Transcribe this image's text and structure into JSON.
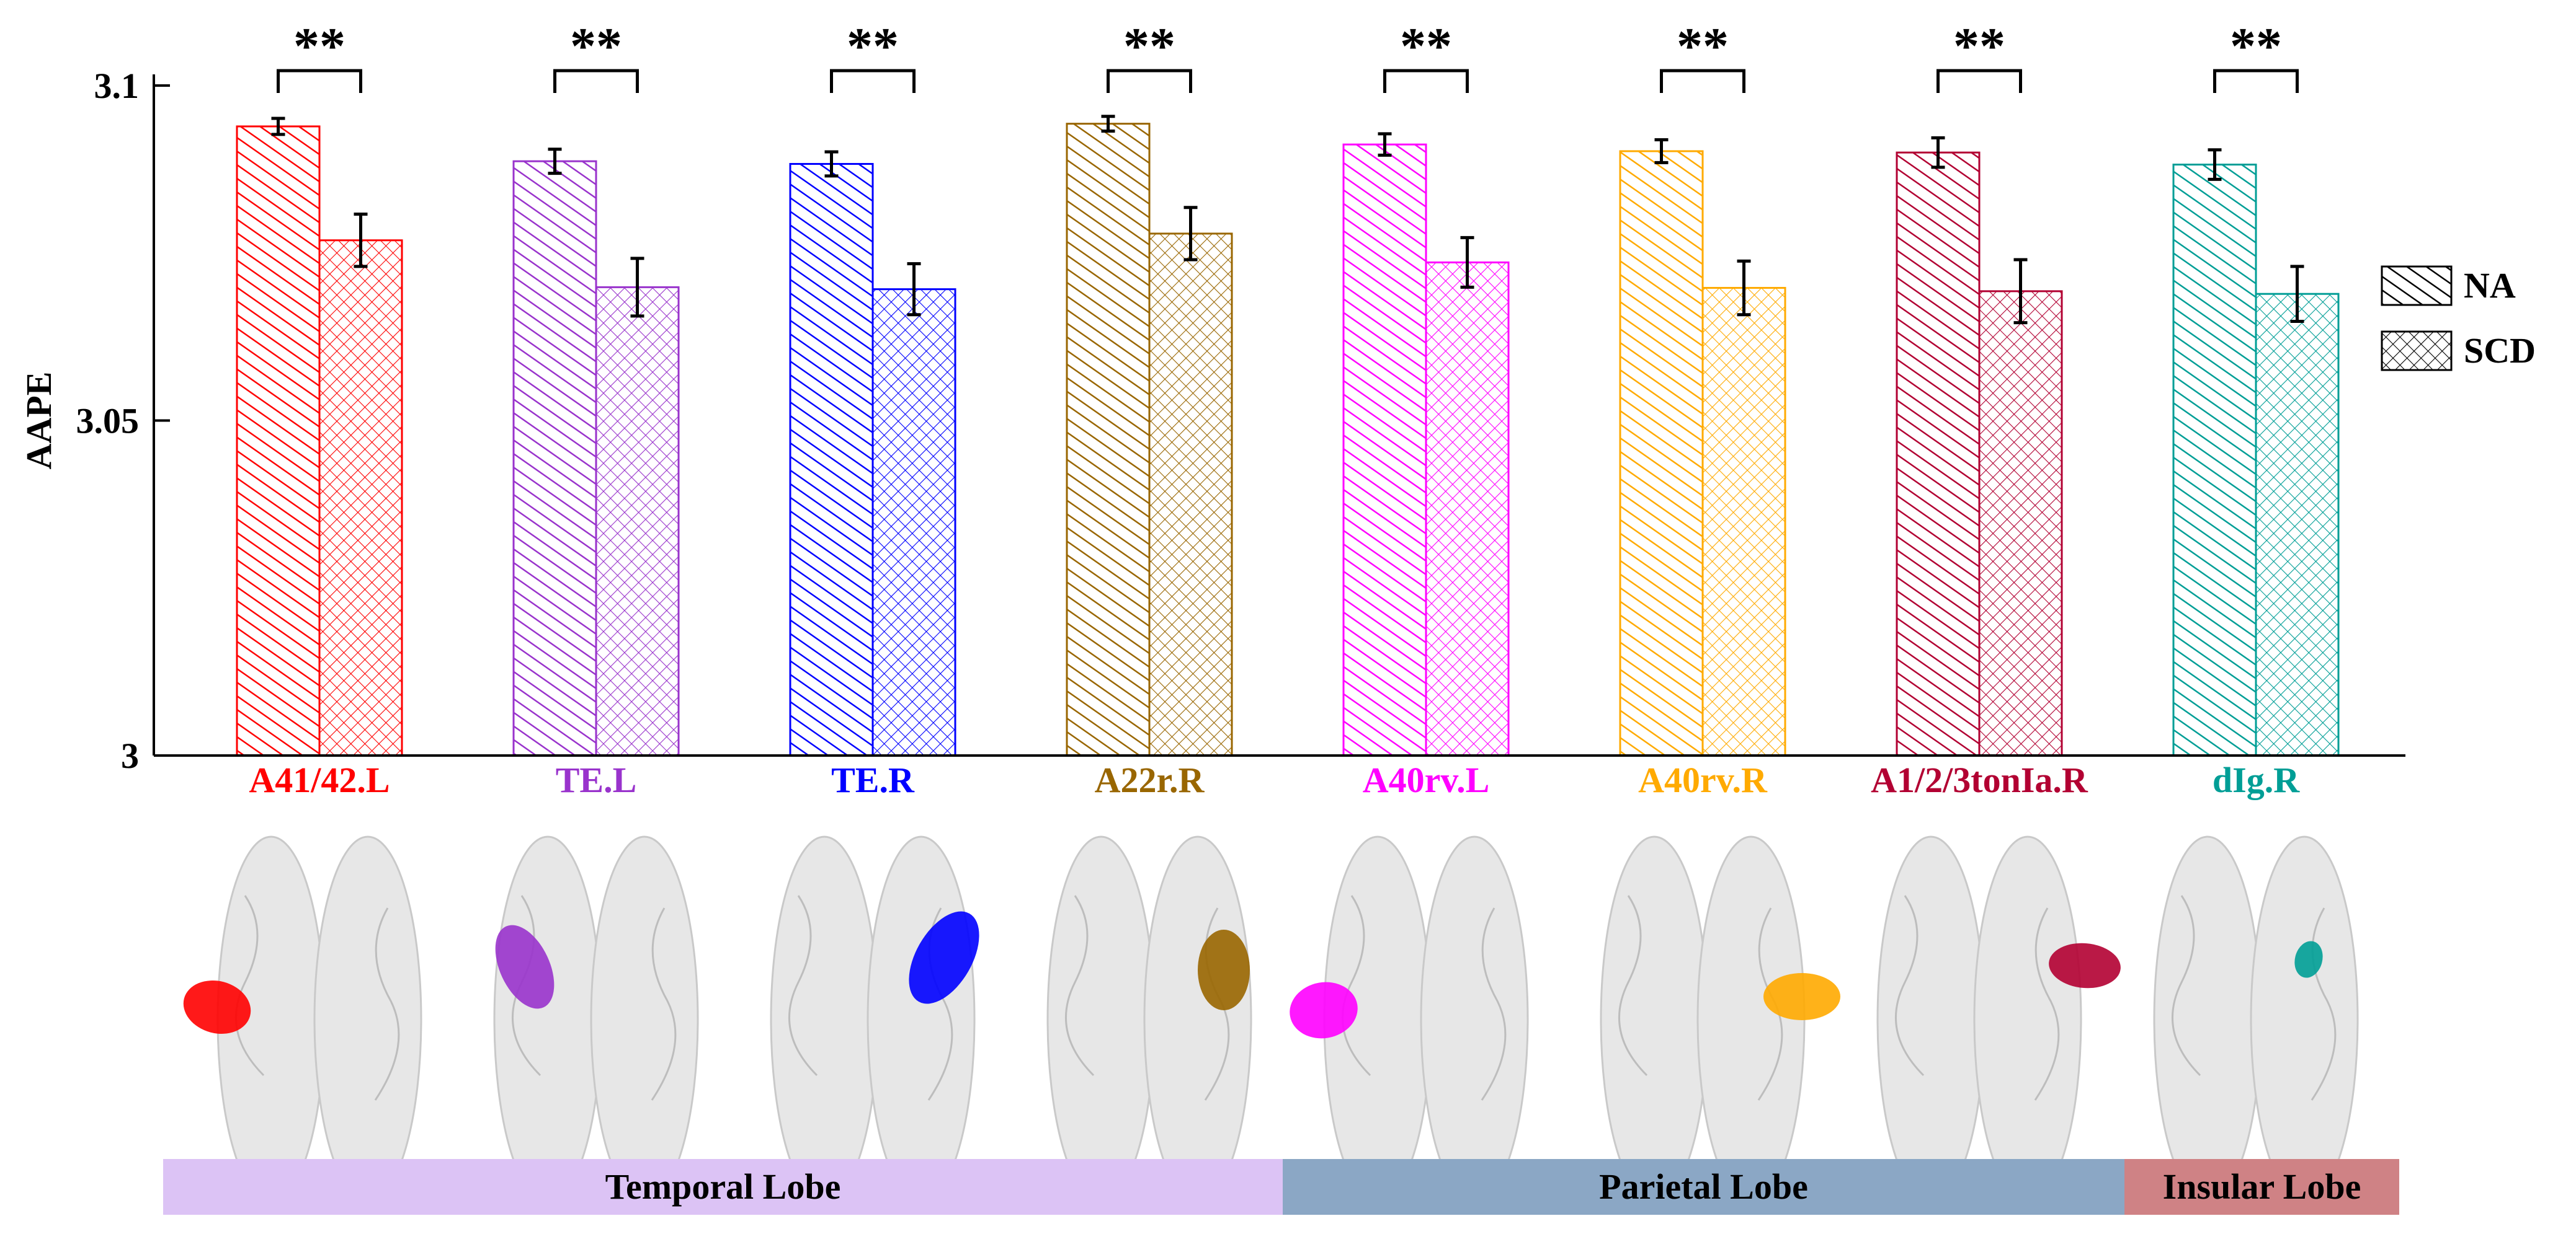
{
  "chart_data": {
    "type": "bar",
    "ylabel": "AAPE",
    "ylim": [
      3,
      3.1
    ],
    "yticks": [
      {
        "value": 3,
        "label": "3"
      },
      {
        "value": 3.05,
        "label": "3.05"
      },
      {
        "value": 3.1,
        "label": "3.1"
      }
    ],
    "grid": false,
    "legend_position": "right",
    "legend": [
      {
        "name": "NA",
        "pattern": "diagonal-hatch"
      },
      {
        "name": "SCD",
        "pattern": "cross-hatch"
      }
    ],
    "significance_marker": "**",
    "categories": [
      {
        "label": "A41/42.L",
        "color": "#ff0000",
        "NA": {
          "value": 3.0939,
          "err": 0.0012
        },
        "SCD": {
          "value": 3.0769,
          "err": 0.0039
        }
      },
      {
        "label": "TE.L",
        "color": "#9933cc",
        "NA": {
          "value": 3.0887,
          "err": 0.0018
        },
        "SCD": {
          "value": 3.0699,
          "err": 0.0043
        }
      },
      {
        "label": "TE.R",
        "color": "#0000ff",
        "NA": {
          "value": 3.0883,
          "err": 0.0018
        },
        "SCD": {
          "value": 3.0696,
          "err": 0.0038
        }
      },
      {
        "label": "A22r.R",
        "color": "#996600",
        "NA": {
          "value": 3.0943,
          "err": 0.0011
        },
        "SCD": {
          "value": 3.0779,
          "err": 0.0039
        }
      },
      {
        "label": "A40rv.L",
        "color": "#ff00ff",
        "NA": {
          "value": 3.0912,
          "err": 0.0016
        },
        "SCD": {
          "value": 3.0736,
          "err": 0.0037
        }
      },
      {
        "label": "A40rv.R",
        "color": "#ffaa00",
        "NA": {
          "value": 3.0902,
          "err": 0.0017
        },
        "SCD": {
          "value": 3.0698,
          "err": 0.004
        }
      },
      {
        "label": "A1/2/3tonIa.R",
        "color": "#b20032",
        "NA": {
          "value": 3.09,
          "err": 0.0022
        },
        "SCD": {
          "value": 3.0693,
          "err": 0.0047
        }
      },
      {
        "label": "dIg.R",
        "color": "#009e96",
        "NA": {
          "value": 3.0882,
          "err": 0.0022
        },
        "SCD": {
          "value": 3.0689,
          "err": 0.0041
        }
      }
    ],
    "lobes": [
      {
        "label": "Temporal Lobe",
        "from": 0,
        "to": 3,
        "color": "#dcc3f5"
      },
      {
        "label": "Parietal Lobe",
        "from": 4,
        "to": 6,
        "color": "#8ba7c5"
      },
      {
        "label": "Insular Lobe",
        "from": 7,
        "to": 7,
        "color": "#cf8285"
      }
    ]
  }
}
